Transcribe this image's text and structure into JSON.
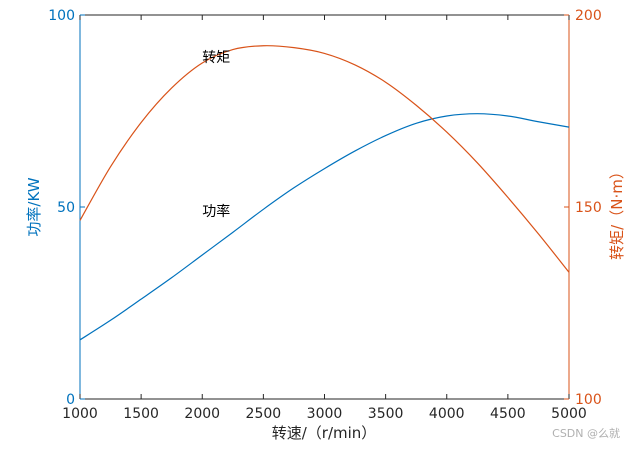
{
  "chart_data": {
    "type": "line",
    "x": [
      1000,
      1250,
      1500,
      1750,
      2000,
      2250,
      2500,
      2750,
      3000,
      3250,
      3500,
      3750,
      4000,
      4250,
      4500,
      4750,
      5000
    ],
    "series": [
      {
        "name": "功率",
        "axis": "left",
        "color": "#0072BD",
        "values": [
          15.4,
          20.5,
          26.0,
          31.6,
          37.5,
          43.4,
          49.4,
          55.0,
          60.0,
          64.6,
          68.6,
          71.8,
          73.7,
          74.3,
          73.7,
          72.2,
          70.8
        ]
      },
      {
        "name": "转矩",
        "axis": "right",
        "color": "#D95319",
        "values": [
          146.5,
          160.5,
          172.0,
          181.0,
          187.5,
          191.0,
          192.0,
          191.5,
          190.0,
          187.0,
          182.5,
          176.5,
          169.5,
          161.5,
          152.5,
          143.0,
          133.0
        ]
      }
    ],
    "xlabel": "转速/（r/min）",
    "ylabel_left": "功率/KW",
    "ylabel_right": "转矩/（N·m）",
    "xlim": [
      1000,
      5000
    ],
    "ylim_left": [
      0,
      100
    ],
    "ylim_right": [
      100,
      200
    ],
    "xticks": [
      1000,
      1500,
      2000,
      2500,
      3000,
      3500,
      4000,
      4500,
      5000
    ],
    "yticks_left": [
      0,
      50,
      100
    ],
    "yticks_right": [
      100,
      150,
      200
    ],
    "annotations": [
      {
        "text": "转矩",
        "x": 2000,
        "y_left": 89
      },
      {
        "text": "功率",
        "x": 2000,
        "y_left": 49
      }
    ],
    "left_axis_color": "#0072BD",
    "right_axis_color": "#D95319",
    "grid": false
  },
  "watermark": "CSDN @么就"
}
